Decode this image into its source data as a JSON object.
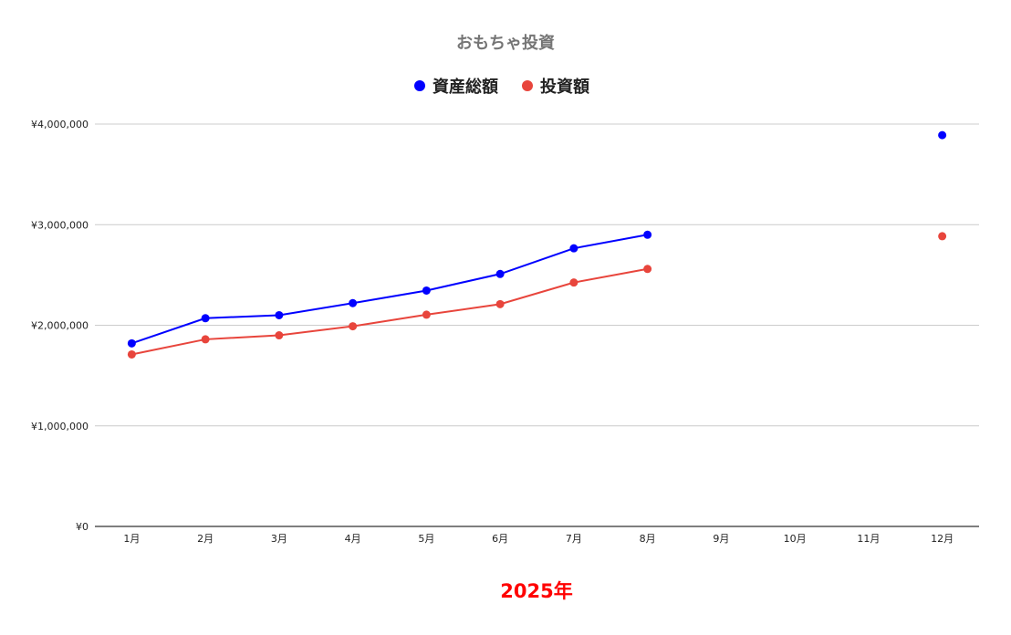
{
  "chart_data": {
    "type": "line",
    "title": "おもちゃ投資",
    "xlabel": "2025年",
    "ylabel": "",
    "categories": [
      "1月",
      "2月",
      "3月",
      "4月",
      "5月",
      "6月",
      "7月",
      "8月",
      "9月",
      "10月",
      "11月",
      "12月"
    ],
    "y_ticks": [
      "¥0",
      "¥1,000,000",
      "¥2,000,000",
      "¥3,000,000",
      "¥4,000,000"
    ],
    "ylim": [
      0,
      4000000
    ],
    "grid": true,
    "legend_position": "top",
    "series": [
      {
        "name": "資産総額",
        "color": "#0000ff",
        "values": [
          1820000,
          2070000,
          2100000,
          2220000,
          2345000,
          2510000,
          2765000,
          2900000,
          null,
          null,
          null,
          3890000
        ]
      },
      {
        "name": "投資額",
        "color": "#e8453c",
        "values": [
          1710000,
          1860000,
          1900000,
          1990000,
          2105000,
          2210000,
          2425000,
          2560000,
          null,
          null,
          null,
          2885000
        ]
      }
    ]
  },
  "colors": {
    "title": "#757575",
    "xlabel": "#ff0000",
    "axis_text": "#222222",
    "grid": "#cccccc",
    "axis": "#333333"
  }
}
